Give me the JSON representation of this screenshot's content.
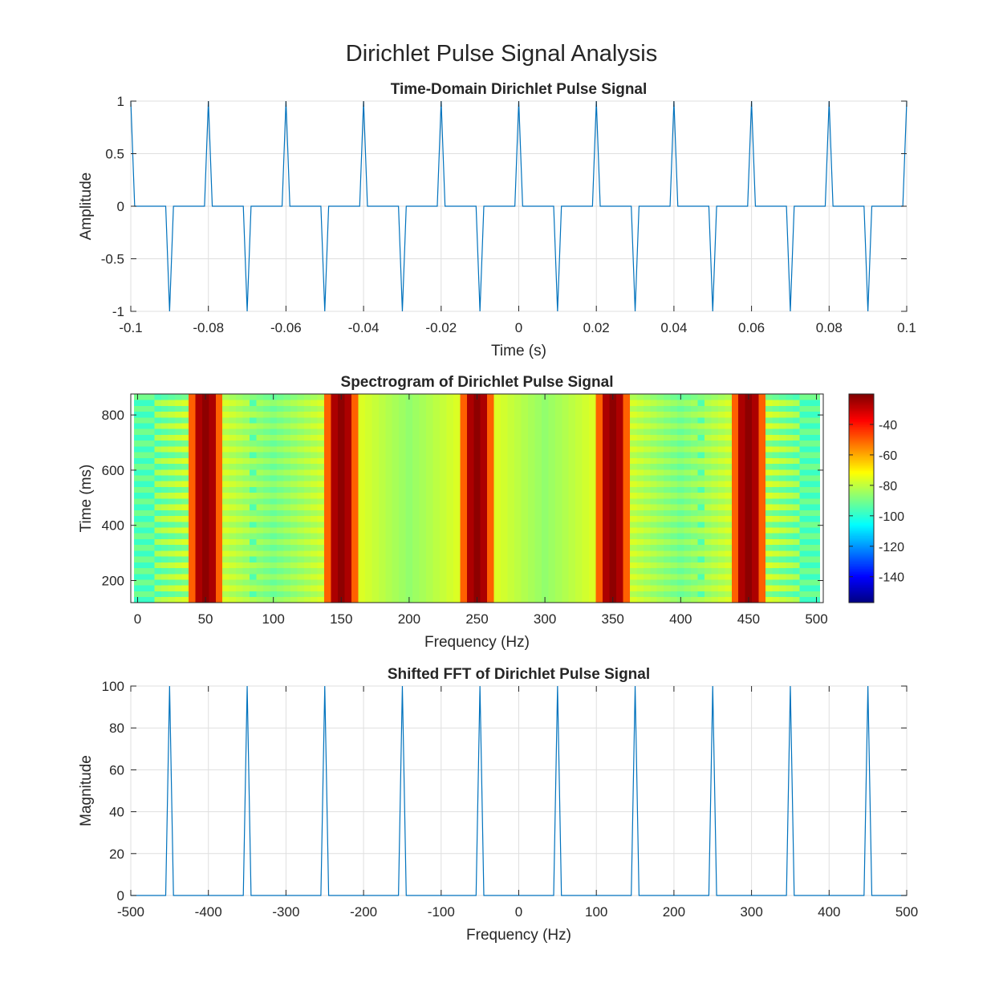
{
  "figure": {
    "title": "Dirichlet Pulse Signal Analysis"
  },
  "chart_data": [
    {
      "id": "time",
      "type": "line",
      "title": "Time-Domain Dirichlet Pulse Signal",
      "xlabel": "Time (s)",
      "ylabel": "Amplitude",
      "xlim": [
        -0.1,
        0.1
      ],
      "ylim": [
        -1,
        1
      ],
      "grid": true,
      "color": "#0072BD",
      "x_ticks": [
        -0.1,
        -0.08,
        -0.06,
        -0.04,
        -0.02,
        0,
        0.02,
        0.04,
        0.06,
        0.08,
        0.1
      ],
      "x_tick_labels": [
        "-0.1",
        "-0.08",
        "-0.06",
        "-0.04",
        "-0.02",
        "0",
        "0.02",
        "0.04",
        "0.06",
        "0.08",
        "0.1"
      ],
      "y_ticks": [
        -1,
        -0.5,
        0,
        0.5,
        1
      ],
      "y_tick_labels": [
        "-1",
        "-0.5",
        "0",
        "0.5",
        "1"
      ],
      "sample_period": 0.001,
      "positive_pulse_times": [
        -0.1,
        -0.08,
        -0.06,
        -0.04,
        -0.02,
        0,
        0.02,
        0.04,
        0.06,
        0.08,
        0.1
      ],
      "negative_pulse_times": [
        -0.09,
        -0.07,
        -0.05,
        -0.03,
        -0.01,
        0.01,
        0.03,
        0.05,
        0.07,
        0.09
      ],
      "pulse_amplitude": 1
    },
    {
      "id": "spectrogram",
      "type": "heatmap",
      "title": "Spectrogram of Dirichlet Pulse Signal",
      "xlabel": "Frequency (Hz)",
      "ylabel": "Time (ms)",
      "xlim": [
        -5,
        505
      ],
      "ylim": [
        120,
        876
      ],
      "x_ticks": [
        0,
        50,
        100,
        150,
        200,
        250,
        300,
        350,
        400,
        450,
        500
      ],
      "x_tick_labels": [
        "0",
        "50",
        "100",
        "150",
        "200",
        "250",
        "300",
        "350",
        "400",
        "450",
        "500"
      ],
      "y_ticks": [
        200,
        400,
        600,
        800
      ],
      "y_tick_labels": [
        "200",
        "400",
        "600",
        "800"
      ],
      "colormap": "jet",
      "clim": [
        -157,
        -20
      ],
      "colorbar_ticks": [
        -140,
        -120,
        -100,
        -80,
        -60,
        -40
      ],
      "colorbar_tick_labels": [
        "-140",
        "-120",
        "-100",
        "-80",
        "-60",
        "-40"
      ],
      "frequency_step": 5,
      "time_rows": 36,
      "peak_frequencies": [
        50,
        150,
        250,
        350,
        450
      ],
      "peak_power_db": -22,
      "base_power_db": -72
    },
    {
      "id": "fft",
      "type": "line",
      "title": "Shifted FFT of Dirichlet Pulse Signal",
      "xlabel": "Frequency (Hz)",
      "ylabel": "Magnitude",
      "xlim": [
        -500,
        500
      ],
      "ylim": [
        0,
        100
      ],
      "grid": true,
      "color": "#0072BD",
      "x_ticks": [
        -500,
        -400,
        -300,
        -200,
        -100,
        0,
        100,
        200,
        300,
        400,
        500
      ],
      "x_tick_labels": [
        "-500",
        "-400",
        "-300",
        "-200",
        "-100",
        "0",
        "100",
        "200",
        "300",
        "400",
        "500"
      ],
      "y_ticks": [
        0,
        20,
        40,
        60,
        80,
        100
      ],
      "y_tick_labels": [
        "0",
        "20",
        "40",
        "60",
        "80",
        "100"
      ],
      "frequency_step": 5,
      "peak_frequencies": [
        -450,
        -350,
        -250,
        -150,
        -50,
        50,
        150,
        250,
        350,
        450
      ],
      "peak_magnitude": 100
    }
  ]
}
